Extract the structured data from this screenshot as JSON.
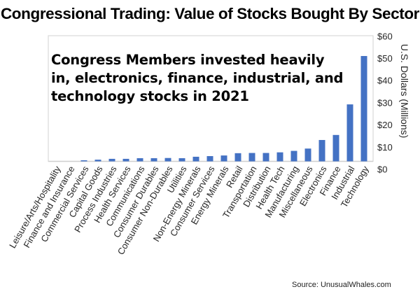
{
  "chart_data": {
    "type": "bar",
    "title": "Congressional Trading: Value of Stocks Bought By Sector",
    "annotation": "Congress Members invested heavily in, electronics, finance, industrial, and technology stocks in 2021",
    "xlabel": "",
    "ylabel": "U.S. Dollars (Millions)",
    "ylim": [
      0,
      60
    ],
    "yticks": [
      0,
      10,
      20,
      30,
      40,
      50,
      60
    ],
    "ytick_labels": [
      "$0",
      "$10",
      "$20",
      "$30",
      "$40",
      "$50",
      "$60"
    ],
    "yaxis_side": "right",
    "grid": false,
    "bar_color": "#4472C4",
    "categories": [
      "Leisure/Arts/Hospitality",
      "Finance and Insurance",
      "Commercial Services",
      "Capital Goods",
      "Process Industries",
      "Health Services",
      "Communications",
      "Consumer Durables",
      "Consumer Non-Durables",
      "Utilities",
      "Non-Energy Minerals",
      "Consumer Services",
      "Energy Minerals",
      "Retail",
      "Transportation",
      "Distribution",
      "Health Tech",
      "Manufacturing",
      "Miscellaneous",
      "Electronics",
      "Finance",
      "Industrial",
      "Technology"
    ],
    "values": [
      0,
      0,
      0.5,
      0.8,
      1.2,
      1.2,
      1.5,
      1.5,
      1.6,
      1.5,
      2.2,
      2.5,
      2.8,
      3.9,
      4.0,
      4.0,
      4.3,
      5.0,
      6.1,
      10.2,
      12.6,
      27.2,
      50.3
    ],
    "source": "Source: UnusualWhales.com"
  }
}
